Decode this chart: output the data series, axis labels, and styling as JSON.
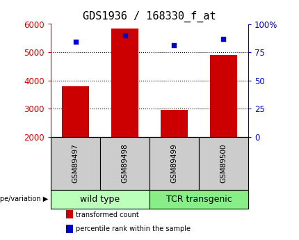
{
  "title": "GDS1936 / 168330_f_at",
  "samples": [
    "GSM89497",
    "GSM89498",
    "GSM89499",
    "GSM89500"
  ],
  "red_values": [
    3800,
    5850,
    2950,
    4900
  ],
  "blue_percentiles": [
    84,
    90,
    81,
    87
  ],
  "ylim_left": [
    2000,
    6000
  ],
  "ylim_right": [
    0,
    100
  ],
  "yticks_left": [
    2000,
    3000,
    4000,
    5000,
    6000
  ],
  "yticks_right": [
    0,
    25,
    50,
    75,
    100
  ],
  "ytick_labels_right": [
    "0",
    "25",
    "50",
    "75",
    "100%"
  ],
  "red_color": "#cc0000",
  "blue_color": "#0000cc",
  "groups": [
    {
      "label": "wild type",
      "indices": [
        0,
        1
      ],
      "color": "#bbffbb"
    },
    {
      "label": "TCR transgenic",
      "indices": [
        2,
        3
      ],
      "color": "#88ee88"
    }
  ],
  "genotype_label": "genotype/variation",
  "legend_red": "transformed count",
  "legend_blue": "percentile rank within the sample",
  "sample_box_color": "#cccccc",
  "title_fontsize": 11,
  "tick_fontsize": 8.5,
  "group_label_fontsize": 9,
  "sample_label_fontsize": 7.5
}
